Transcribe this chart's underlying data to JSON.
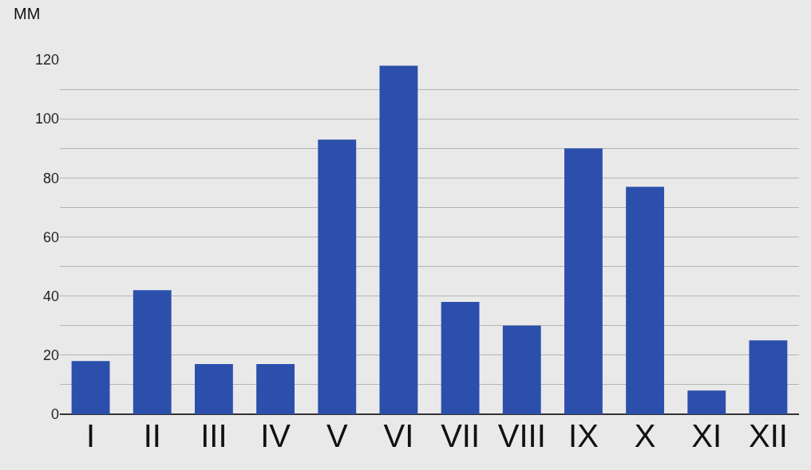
{
  "chart_data": {
    "type": "bar",
    "ylabel": "ММ",
    "categories": [
      "I",
      "II",
      "III",
      "IV",
      "V",
      "VI",
      "VII",
      "VIII",
      "IX",
      "X",
      "XI",
      "XII"
    ],
    "values": [
      18,
      42,
      17,
      17,
      93,
      118,
      38,
      30,
      90,
      77,
      8,
      25
    ],
    "color": "#2b4fab",
    "ylim": [
      0,
      120
    ],
    "yticks": [
      0,
      {
        "value": 10,
        "label": null
      },
      20,
      {
        "value": 30,
        "label": null
      },
      40,
      {
        "value": 50,
        "label": null
      },
      60,
      {
        "value": 70,
        "label": null
      },
      80,
      {
        "value": 90,
        "label": null
      },
      100,
      {
        "value": 110,
        "label": null
      },
      120
    ],
    "grid": "y"
  }
}
